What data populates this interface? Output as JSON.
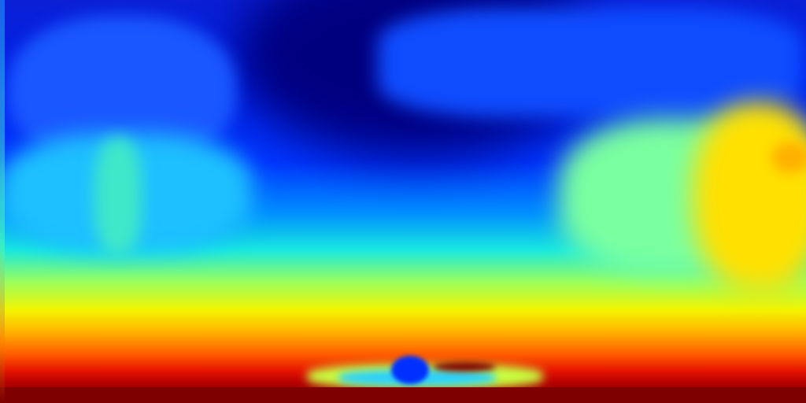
{
  "image": {
    "kind": "depth-map",
    "colormap": "jet",
    "colors": {
      "far": "#00007f",
      "mid_far": "#0036ff",
      "mid": "#18e8e0",
      "mid_near": "#f4f400",
      "near": "#e61400",
      "nearest": "#800000"
    }
  }
}
